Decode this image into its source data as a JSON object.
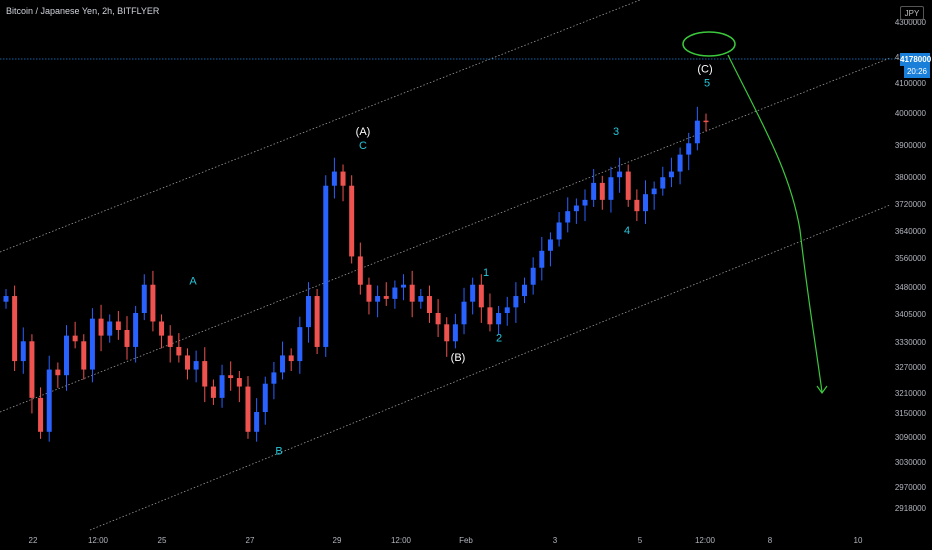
{
  "header": {
    "title": "Bitcoin / Japanese Yen, 2h, BITFLYER"
  },
  "currency_badge": "JPY",
  "last_price": {
    "value": "4178000",
    "countdown": "20:26"
  },
  "chart_data": {
    "type": "candlestick",
    "price_axis": {
      "labels": [
        "4300000",
        "4200000",
        "4100000",
        "4000000",
        "3900000",
        "3800000",
        "3720000",
        "3640000",
        "3560000",
        "3480000",
        "3405000",
        "3330000",
        "3270000",
        "3210000",
        "3150000",
        "3090000",
        "3030000",
        "2970000",
        "2918000"
      ]
    },
    "time_axis": {
      "labels": [
        "22",
        "12:00",
        "25",
        "27",
        "29",
        "12:00",
        "Feb",
        "3",
        "5",
        "12:00",
        "8",
        "10"
      ]
    },
    "wave_labels": [
      {
        "text": "A",
        "color": "#26c6da",
        "price": 3600000
      },
      {
        "text": "B",
        "color": "#26c6da",
        "price": 3000000
      },
      {
        "text": "(A)",
        "color": "#ffffff",
        "price": 4130000
      },
      {
        "text": "C",
        "color": "#26c6da",
        "price": 4080000
      },
      {
        "text": "(B)",
        "color": "#ffffff",
        "price": 3330000
      },
      {
        "text": "1",
        "color": "#26c6da",
        "price": 3630000
      },
      {
        "text": "2",
        "color": "#26c6da",
        "price": 3400000
      },
      {
        "text": "3",
        "color": "#26c6da",
        "price": 4130000
      },
      {
        "text": "4",
        "color": "#26c6da",
        "price": 3780000
      },
      {
        "text": "(C)",
        "color": "#ffffff",
        "price": 4350000
      },
      {
        "text": "5",
        "color": "#26c6da",
        "price": 4300000
      }
    ],
    "series": [
      {
        "key": "close",
        "values": [
          3560000,
          3330000,
          3400000,
          3200000,
          3080000,
          3300000,
          3280000,
          3420000,
          3400000,
          3300000,
          3480000,
          3420000,
          3470000,
          3440000,
          3380000,
          3500000,
          3600000,
          3470000,
          3420000,
          3380000,
          3350000,
          3300000,
          3330000,
          3240000,
          3200000,
          3280000,
          3270000,
          3240000,
          3080000,
          3150000,
          3250000,
          3290000,
          3350000,
          3330000,
          3450000,
          3560000,
          3380000,
          3950000,
          4000000,
          3950000,
          3700000,
          3600000,
          3540000,
          3560000,
          3550000,
          3590000,
          3600000,
          3540000,
          3560000,
          3500000,
          3460000,
          3400000,
          3460000,
          3540000,
          3600000,
          3520000,
          3460000,
          3500000,
          3520000,
          3560000,
          3600000,
          3660000,
          3720000,
          3760000,
          3820000,
          3860000,
          3880000,
          3900000,
          3960000,
          3900000,
          3980000,
          4000000,
          3900000,
          3860000,
          3920000,
          3940000,
          3980000,
          4000000,
          4060000,
          4100000,
          4180000,
          4178000
        ]
      }
    ],
    "colors": {
      "up": "#2962ff",
      "down": "#ef5350",
      "channel": "#9a9a9a",
      "dotted_price_line": "#1a7fd9",
      "projection": "#3cc83c"
    }
  }
}
